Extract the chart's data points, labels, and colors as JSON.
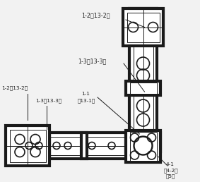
{
  "bg_color": "#f2f2f2",
  "line_color": "#1a1a1a",
  "fig_w": 2.83,
  "fig_h": 2.58,
  "labels": {
    "1-2_13-2_top": "1-2（13-2）",
    "1-3_13-3_mid": "1-3（13-3）",
    "1-2_13-2_left": "1-2（13-2）",
    "1-3_13-3_left": "1-3（13-3）",
    "1-1": "1-1",
    "13-1": "（13-1）",
    "4-1": "4-1",
    "4-2": "（4-2）",
    "5": "（5）"
  }
}
